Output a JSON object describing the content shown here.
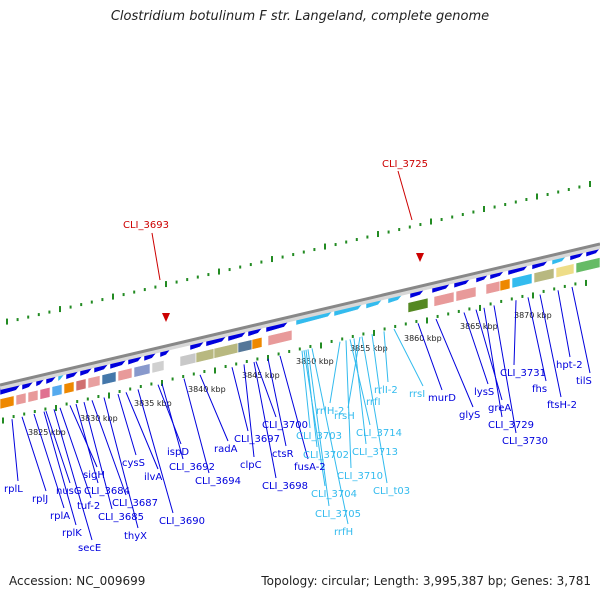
{
  "title": "Clostridium botulinum F str. Langeland, complete genome",
  "footer": {
    "accession_label": "Accession:",
    "accession": "NC_009699",
    "topology_text": "Topology: circular; Length: 3,995,387 bp; Genes: 3,781"
  },
  "colors": {
    "gene": "#0000dd",
    "rna": "#33bbee",
    "highlight": "#cc0000",
    "tick": "#228b22",
    "backbone": "#888888"
  },
  "highlights": [
    "CLI_3693",
    "CLI_3725"
  ],
  "kbp_ticks": [
    "3825 kbp",
    "3830 kbp",
    "3835 kbp",
    "3840 kbp",
    "3845 kbp",
    "3850 kbp",
    "3855 kbp",
    "3860 kbp",
    "3865 kbp",
    "3870 kbp"
  ],
  "genes": [
    {
      "label": "rplL",
      "kind": "gene"
    },
    {
      "label": "rplJ",
      "kind": "gene"
    },
    {
      "label": "rplA",
      "kind": "gene"
    },
    {
      "label": "rplK",
      "kind": "gene"
    },
    {
      "label": "nusG",
      "kind": "gene"
    },
    {
      "label": "secE",
      "kind": "gene"
    },
    {
      "label": "tuf-2",
      "kind": "gene"
    },
    {
      "label": "sigH",
      "kind": "gene"
    },
    {
      "label": "CLI_3684",
      "kind": "gene"
    },
    {
      "label": "CLI_3685",
      "kind": "gene"
    },
    {
      "label": "CLI_3687",
      "kind": "gene"
    },
    {
      "label": "thyX",
      "kind": "gene"
    },
    {
      "label": "cysS",
      "kind": "gene"
    },
    {
      "label": "ilvA",
      "kind": "gene"
    },
    {
      "label": "CLI_3690",
      "kind": "gene"
    },
    {
      "label": "ispD",
      "kind": "gene"
    },
    {
      "label": "CLI_3692",
      "kind": "gene"
    },
    {
      "label": "radA",
      "kind": "gene"
    },
    {
      "label": "CLI_3694",
      "kind": "gene"
    },
    {
      "label": "clpC",
      "kind": "gene"
    },
    {
      "label": "CLI_3697",
      "kind": "gene"
    },
    {
      "label": "CLI_3700",
      "kind": "gene"
    },
    {
      "label": "ctsR",
      "kind": "gene"
    },
    {
      "label": "CLI_3698",
      "kind": "gene"
    },
    {
      "label": "fusA-2",
      "kind": "gene"
    },
    {
      "label": "CLI_3703",
      "kind": "rna"
    },
    {
      "label": "CLI_3702",
      "kind": "rna"
    },
    {
      "label": "CLI_3704",
      "kind": "rna"
    },
    {
      "label": "CLI_3705",
      "kind": "rna"
    },
    {
      "label": "rrfH",
      "kind": "rna"
    },
    {
      "label": "rrlH-2",
      "kind": "rna"
    },
    {
      "label": "rrsH",
      "kind": "rna"
    },
    {
      "label": "CLI_3714",
      "kind": "rna"
    },
    {
      "label": "CLI_3713",
      "kind": "rna"
    },
    {
      "label": "CLI_3710",
      "kind": "rna"
    },
    {
      "label": "CLI_t03",
      "kind": "rna"
    },
    {
      "label": "rrfI",
      "kind": "rna"
    },
    {
      "label": "rrlI-2",
      "kind": "rna"
    },
    {
      "label": "rrsI",
      "kind": "rna"
    },
    {
      "label": "murD",
      "kind": "gene"
    },
    {
      "label": "glyS",
      "kind": "gene"
    },
    {
      "label": "lysS",
      "kind": "gene"
    },
    {
      "label": "greA",
      "kind": "gene"
    },
    {
      "label": "CLI_3729",
      "kind": "gene"
    },
    {
      "label": "CLI_3730",
      "kind": "gene"
    },
    {
      "label": "CLI_3731",
      "kind": "gene"
    },
    {
      "label": "fhs",
      "kind": "gene"
    },
    {
      "label": "ftsH-2",
      "kind": "gene"
    },
    {
      "label": "hpt-2",
      "kind": "gene"
    },
    {
      "label": "tilS",
      "kind": "gene"
    }
  ]
}
